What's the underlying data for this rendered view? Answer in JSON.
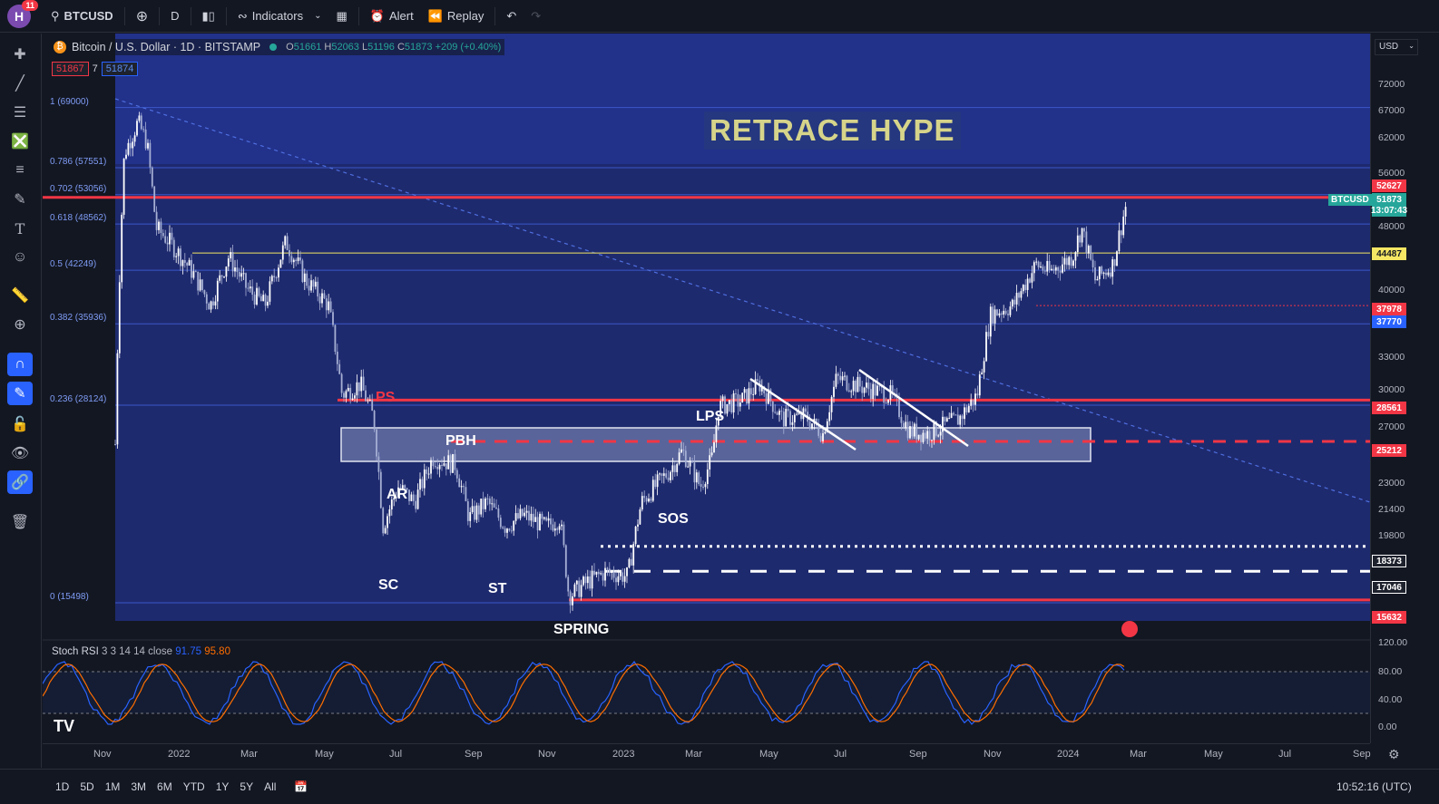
{
  "topbar": {
    "avatar": "H",
    "notifications": "11",
    "symbol": "BTCUSD",
    "interval": "D",
    "indicators_label": "Indicators",
    "alert_label": "Alert",
    "replay_label": "Replay"
  },
  "legend": {
    "title": "Bitcoin / U.S. Dollar · 1D · BITSTAMP",
    "o_label": "O",
    "o": "51661",
    "h_label": "H",
    "h": "52063",
    "l_label": "L",
    "l": "51196",
    "c_label": "C",
    "c": "51873",
    "change": "+209 (+0.40%)",
    "bid": "51867",
    "spread": "7",
    "ask": "51874"
  },
  "chart": {
    "headline": "RETRACE HYPE",
    "annotations": [
      "PS",
      "PBH",
      "AR",
      "SC",
      "ST",
      "SOS",
      "LPS",
      "SPRING"
    ],
    "fib_levels": [
      {
        "label": "1 (69000)",
        "price": 69000
      },
      {
        "label": "0.786 (57551)",
        "price": 57551
      },
      {
        "label": "0.702 (53056)",
        "price": 53056
      },
      {
        "label": "0.618 (48562)",
        "price": 48562
      },
      {
        "label": "0.5 (42249)",
        "price": 42249
      },
      {
        "label": "0.382 (35936)",
        "price": 35936
      },
      {
        "label": "0.236 (28124)",
        "price": 28124
      },
      {
        "label": "0 (15498)",
        "price": 15498
      }
    ]
  },
  "price_scale": {
    "currency": "USD",
    "ticks": [
      "72000",
      "67000",
      "62000",
      "56000",
      "48000",
      "40000",
      "33000",
      "30000",
      "27000",
      "23000",
      "21400",
      "19800",
      "120.00",
      "80.00",
      "40.00",
      "0.00"
    ],
    "tags": [
      {
        "text": "52627",
        "color": "#f23645"
      },
      {
        "text": "51873",
        "color": "#26a69a"
      },
      {
        "text": "13:07:43",
        "color": "#26a69a"
      },
      {
        "text": "44487",
        "color": "#f5e663"
      },
      {
        "text": "37978",
        "color": "#f23645"
      },
      {
        "text": "37770",
        "color": "#2962ff"
      },
      {
        "text": "28561",
        "color": "#f23645"
      },
      {
        "text": "25212",
        "color": "#f23645"
      },
      {
        "text": "18373",
        "color": "#ffffff"
      },
      {
        "text": "17046",
        "color": "#ffffff"
      },
      {
        "text": "15632",
        "color": "#f23645"
      }
    ],
    "symbol_tag": "BTCUSD"
  },
  "rsi": {
    "title": "Stoch RSI",
    "params": "3 3 14 14 close",
    "k": "91.75",
    "d": "95.80"
  },
  "time_axis": [
    "Nov",
    "2022",
    "Mar",
    "May",
    "Jul",
    "Sep",
    "Nov",
    "2023",
    "Mar",
    "May",
    "Jul",
    "Sep",
    "Nov",
    "2024",
    "Mar",
    "May",
    "Jul",
    "Sep"
  ],
  "bottombar": {
    "ranges": [
      "1D",
      "5D",
      "1M",
      "3M",
      "6M",
      "YTD",
      "1Y",
      "5Y",
      "All"
    ],
    "clock": "10:52:16 (UTC)"
  },
  "colors": {
    "background": "#131722",
    "chart_bg": "#1c2a6b",
    "up": "#ffffff",
    "red_line": "#f23645",
    "fib_blue": "#3b57c9",
    "rsi_k": "#2962ff",
    "rsi_d": "#ff6d00"
  }
}
